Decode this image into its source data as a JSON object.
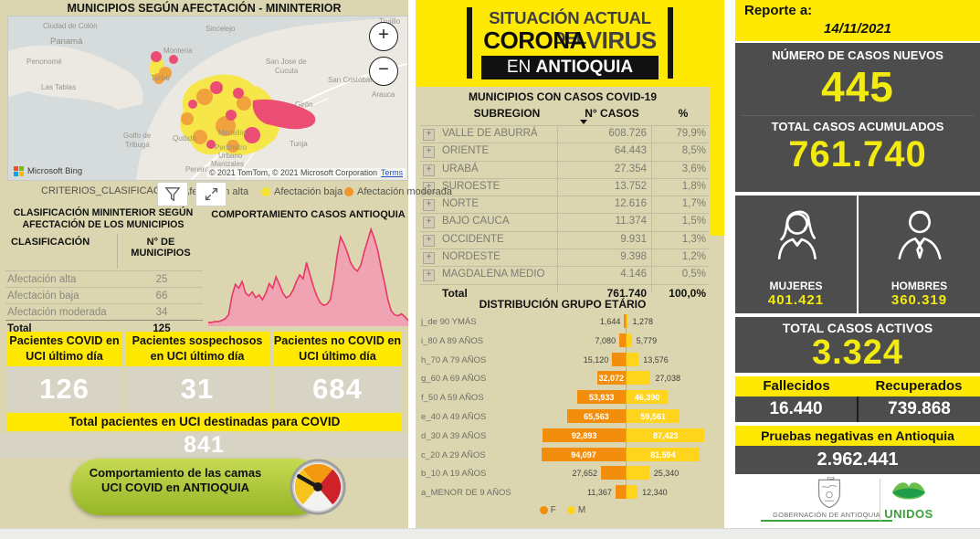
{
  "left_panel": {
    "map_title": "MUNICIPIOS SEGÚN AFECTACIÓN - MININTERIOR",
    "map": {
      "zoom_in_label": "+",
      "zoom_out_label": "−",
      "bing_attribution": "Microsoft Bing",
      "copyright": "© 2021 TomTom, © 2021 Microsoft Corporation",
      "terms_label": "Terms",
      "filter_field_label": "CRITERIOS_CLASIFICAC...",
      "place_labels": [
        "Ciudad de Colón",
        "Panamá",
        "Penonomé",
        "Las Tablas",
        "Sincelejo",
        "Montería",
        "Turbo",
        "San Jose de",
        "Cucuta",
        "San Cristóbal",
        "Trujillo",
        "Girón",
        "Arauca",
        "Golfo de",
        "Tribugá",
        "Quibdó",
        "Medellín",
        "Perímetro",
        "Urbano",
        "Manizales",
        "Pereira",
        "Tunja"
      ],
      "legend": [
        {
          "label": "Afectación alta",
          "color": "#e8486d"
        },
        {
          "label": "Afectación baja",
          "color": "#f7e32e"
        },
        {
          "label": "Afectación moderada",
          "color": "#f0962c"
        }
      ]
    },
    "classification_table": {
      "title_line1": "CLASIFICACIÓN MININTERIOR SEGÚN",
      "title_line2": "AFECTACIÓN DE LOS MUNICIPIOS",
      "col1": "CLASIFICACIÓN",
      "col2a": "N° DE",
      "col2b": "MUNICIPIOS",
      "rows": [
        {
          "label": "Afectación alta",
          "value": "25"
        },
        {
          "label": "Afectación baja",
          "value": "66"
        },
        {
          "label": "Afectación moderada",
          "value": "34"
        }
      ],
      "total": {
        "label": "Total",
        "value": "125"
      }
    },
    "behavior_chart_title": "COMPORTAMIENTO CASOS ANTIOQUIA",
    "uci_cards": [
      {
        "title": "Pacientes COVID en UCI último día",
        "value": "126"
      },
      {
        "title": "Pacientes sospechosos en UCI último día",
        "value": "31"
      },
      {
        "title": "Pacientes no COVID en UCI último día",
        "value": "684"
      }
    ],
    "uci_total": {
      "label": "Total pacientes en UCI destinadas para COVID",
      "value": "841"
    },
    "gauge_button_label": "Comportamiento de las camas UCI COVID en ANTIOQUIA"
  },
  "middle_panel": {
    "header": {
      "line1": "SITUACIÓN ACTUAL DEL",
      "line2_bold": "CORONA",
      "line2_light": "VIRUS",
      "line3_light": "EN ",
      "line3_bold": "ANTIOQUIA"
    },
    "table": {
      "title": "MUNICIPIOS CON CASOS COVID-19",
      "col_subregion": "SUBREGION",
      "col_cases": "N° CASOS",
      "col_pct": "%",
      "rows": [
        {
          "name": "VALLE DE ABURRÁ",
          "cases": "608.726",
          "pct": "79,9%"
        },
        {
          "name": "ORIENTE",
          "cases": "64.443",
          "pct": "8,5%"
        },
        {
          "name": "URABÁ",
          "cases": "27.354",
          "pct": "3,6%"
        },
        {
          "name": "SUROESTE",
          "cases": "13.752",
          "pct": "1,8%"
        },
        {
          "name": "NORTE",
          "cases": "12.616",
          "pct": "1,7%"
        },
        {
          "name": "BAJO CAUCA",
          "cases": "11.374",
          "pct": "1,5%"
        },
        {
          "name": "OCCIDENTE",
          "cases": "9.931",
          "pct": "1,3%"
        },
        {
          "name": "NORDESTE",
          "cases": "9.398",
          "pct": "1,2%"
        },
        {
          "name": "MAGDALENA MEDIO",
          "cases": "4.146",
          "pct": "0,5%"
        }
      ],
      "total": {
        "name": "Total",
        "cases": "761.740",
        "pct": "100,0%"
      }
    },
    "age_distribution": {
      "title": "DISTRIBUCIÓN GRUPO ETÁRIO",
      "legend_f": "F",
      "legend_m": "M",
      "rows": [
        {
          "label": "j_de 90 YMÁS",
          "f": 1644,
          "m": 1278,
          "f_display": "1,644",
          "m_display": "1,278"
        },
        {
          "label": "i_80 A 89 AÑOS",
          "f": 7080,
          "m": 5779,
          "f_display": "7,080",
          "m_display": "5,779"
        },
        {
          "label": "h_70 A 79 AÑOS",
          "f": 15120,
          "m": 13576,
          "f_display": "15,120",
          "m_display": "13,576"
        },
        {
          "label": "g_60 A 69 AÑOS",
          "f": 32072,
          "m": 27038,
          "f_display": "32,072",
          "m_display": "27,038"
        },
        {
          "label": "f_50 A 59 AÑOS",
          "f": 53933,
          "m": 46390,
          "f_display": "53,933",
          "m_display": "46,390"
        },
        {
          "label": "e_40 A 49 AÑOS",
          "f": 65563,
          "m": 59561,
          "f_display": "65,563",
          "m_display": "59,561"
        },
        {
          "label": "d_30 A 39 AÑOS",
          "f": 92893,
          "m": 87423,
          "f_display": "92,893",
          "m_display": "87,423"
        },
        {
          "label": "c_20 A 29 AÑOS",
          "f": 94097,
          "m": 81594,
          "f_display": "94,097",
          "m_display": "81,594"
        },
        {
          "label": "b_10 A 19 AÑOS",
          "f": 27652,
          "m": 25340,
          "f_display": "27,652",
          "m_display": "25,340"
        },
        {
          "label": "a_MENOR DE 9 AÑOS",
          "f": 11367,
          "m": 12340,
          "f_display": "11,367",
          "m_display": "12,340"
        }
      ]
    }
  },
  "right_panel": {
    "report_label": "Reporte a:",
    "report_date": "14/11/2021",
    "new_cases": {
      "label": "NÚMERO DE CASOS NUEVOS",
      "value": "445"
    },
    "total_cases": {
      "label": "TOTAL CASOS ACUMULADOS",
      "value": "761.740"
    },
    "gender": {
      "women_label": "MUJERES",
      "women_value": "401.421",
      "men_label": "HOMBRES",
      "men_value": "360.319"
    },
    "active": {
      "label": "TOTAL CASOS ACTIVOS",
      "value": "3.324"
    },
    "deaths": {
      "label": "Fallecidos",
      "value": "16.440"
    },
    "recovered": {
      "label": "Recuperados",
      "value": "739.868"
    },
    "negative_tests": {
      "label": "Pruebas negativas en Antioquia",
      "value": "2.962.441"
    },
    "logos": {
      "gobernacion": "GOBERNACIÓN DE ANTIOQUIA",
      "unidos": "UNIDOS"
    }
  },
  "colors": {
    "accent_yellow": "#ffe903",
    "panel_tan": "#dcd6b0",
    "dark_box": "#4d4d4d",
    "stat_yellow": "#f3eb10",
    "alta_pink": "#e8486d",
    "baja_yellow": "#f7e32e",
    "moderada_orange": "#f0962c",
    "pyramid_f_orange": "#f28e0c",
    "pyramid_m_yellow": "#ffd41c",
    "curve_pink": "#e63866",
    "unidos_green": "#3da43d"
  },
  "chart_data": [
    {
      "type": "area",
      "title": "COMPORTAMIENTO CASOS ANTIOQUIA",
      "xlabel": "time (unlabeled epidemic timeline)",
      "ylabel": "cases (unlabeled)",
      "grid": false,
      "normalized_values": [
        2,
        2,
        3,
        3,
        4,
        6,
        10,
        30,
        42,
        38,
        45,
        33,
        30,
        34,
        28,
        31,
        26,
        33,
        43,
        38,
        50,
        42,
        33,
        28,
        30,
        36,
        45,
        52,
        48,
        65,
        52,
        40,
        30,
        23,
        20,
        21,
        26,
        45,
        72,
        92,
        85,
        76,
        65,
        59,
        56,
        62,
        76,
        88,
        100,
        90,
        78,
        60,
        44,
        26,
        14,
        10,
        9,
        11,
        8,
        4
      ]
    },
    {
      "type": "bar",
      "orientation": "horizontal-pyramid",
      "title": "DISTRIBUCIÓN GRUPO ETÁRIO",
      "categories": [
        "j_de 90 YMÁS",
        "i_80 A 89 AÑOS",
        "h_70 A 79 AÑOS",
        "g_60 A 69 AÑOS",
        "f_50 A 59 AÑOS",
        "e_40 A 49 AÑOS",
        "d_30 A 39 AÑOS",
        "c_20 A 29 AÑOS",
        "b_10 A 19 AÑOS",
        "a_MENOR DE 9 AÑOS"
      ],
      "series": [
        {
          "name": "F",
          "values": [
            1644,
            7080,
            15120,
            32072,
            53933,
            65563,
            92893,
            94097,
            27652,
            11367
          ]
        },
        {
          "name": "M",
          "values": [
            1278,
            5779,
            13576,
            27038,
            46390,
            59561,
            87423,
            81594,
            25340,
            12340
          ]
        }
      ],
      "legend_position": "bottom"
    },
    {
      "type": "table",
      "title": "MUNICIPIOS CON CASOS COVID-19",
      "columns": [
        "SUBREGION",
        "N° CASOS",
        "%"
      ],
      "rows": [
        [
          "VALLE DE ABURRÁ",
          608726,
          "79,9%"
        ],
        [
          "ORIENTE",
          64443,
          "8,5%"
        ],
        [
          "URABÁ",
          27354,
          "3,6%"
        ],
        [
          "SUROESTE",
          13752,
          "1,8%"
        ],
        [
          "NORTE",
          12616,
          "1,7%"
        ],
        [
          "BAJO CAUCA",
          11374,
          "1,5%"
        ],
        [
          "OCCIDENTE",
          9931,
          "1,3%"
        ],
        [
          "NORDESTE",
          9398,
          "1,2%"
        ],
        [
          "MAGDALENA MEDIO",
          4146,
          "0,5%"
        ]
      ],
      "total": [
        "Total",
        761740,
        "100,0%"
      ]
    },
    {
      "type": "table",
      "title": "CLASIFICACIÓN MININTERIOR SEGÚN AFECTACIÓN DE LOS MUNICIPIOS",
      "columns": [
        "CLASIFICACIÓN",
        "N° DE MUNICIPIOS"
      ],
      "rows": [
        [
          "Afectación alta",
          25
        ],
        [
          "Afectación baja",
          66
        ],
        [
          "Afectación moderada",
          34
        ]
      ],
      "total": [
        "Total",
        125
      ]
    }
  ]
}
